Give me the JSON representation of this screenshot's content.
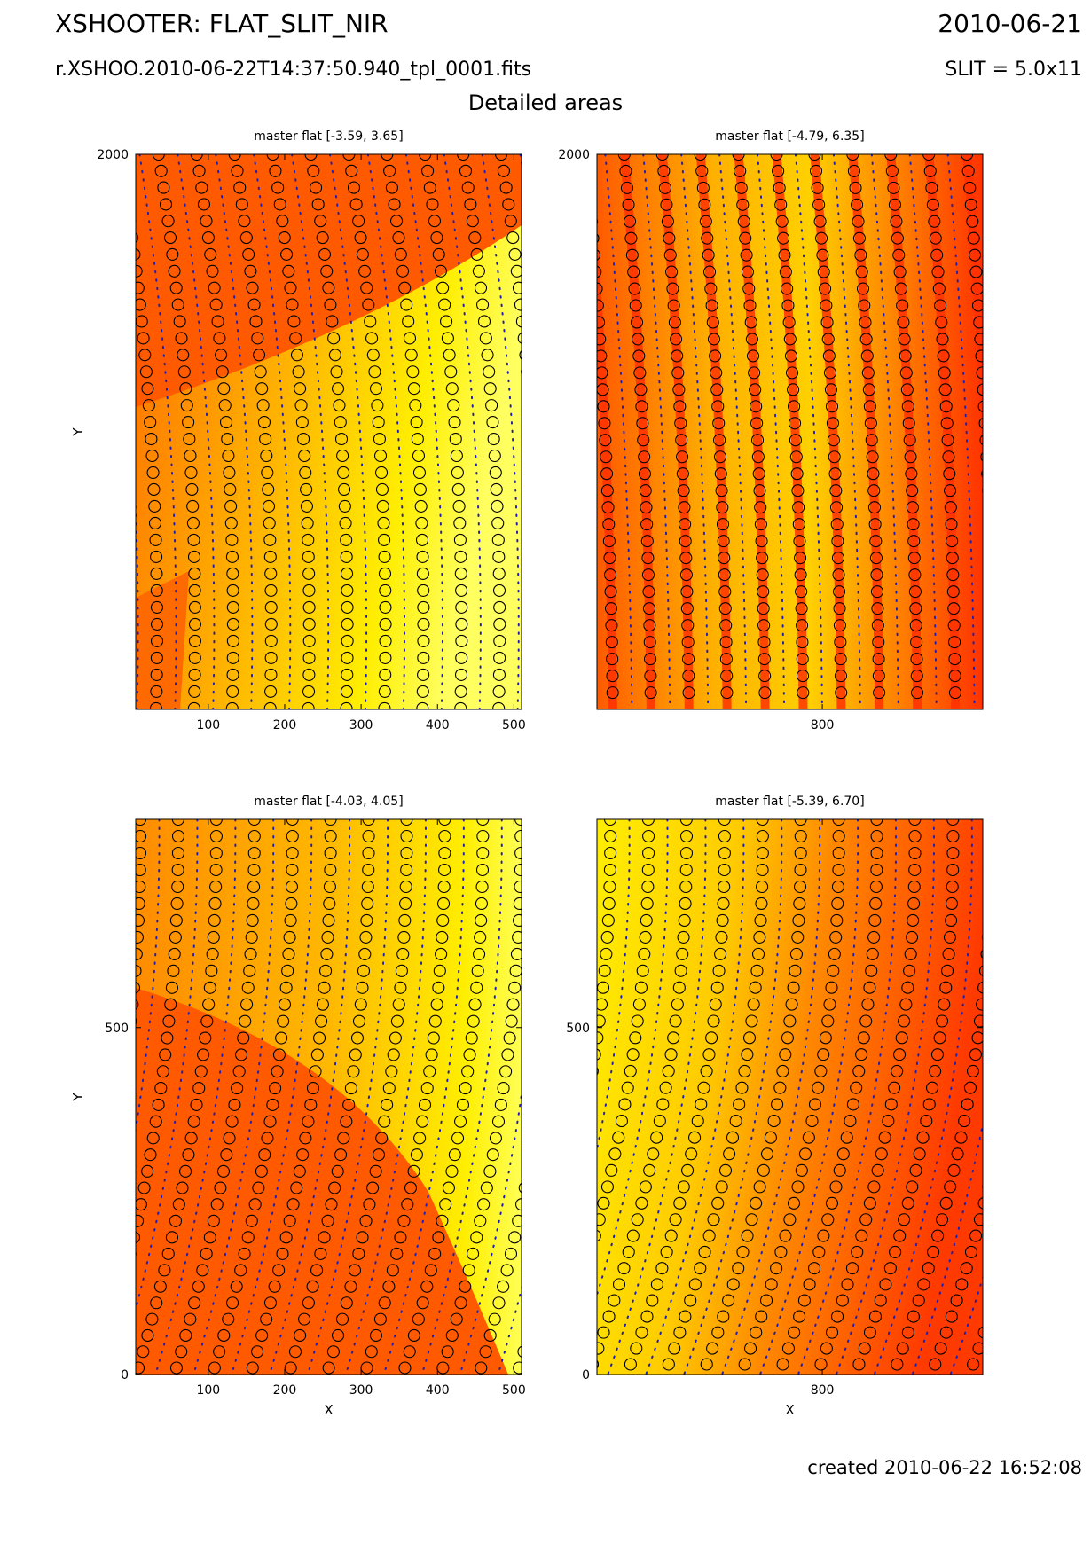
{
  "header": {
    "title": "XSHOOTER: FLAT_SLIT_NIR",
    "date": "2010-06-21",
    "filename": "r.XSHOO.2010-06-22T14:37:50.940_tpl_0001.fits",
    "slit": "SLIT = 5.0x11",
    "section_title": "Detailed areas"
  },
  "footer": {
    "created": "created 2010-06-22 16:52:08"
  },
  "colors": {
    "background_low": "#ff5500",
    "background_high": "#ffff40",
    "trace_center": "#2020b0",
    "trace_edge": "#000000"
  },
  "chart_data": [
    {
      "type": "heatmap",
      "title": "master flat [-3.59, 3.65]",
      "xlabel": "",
      "ylabel": "Y",
      "xlim": [
        5,
        510
      ],
      "ylim": [
        0,
        2000
      ],
      "xticks": [
        100,
        200,
        300,
        400,
        500
      ],
      "yticks": [
        2000
      ],
      "value_range": [
        -3.59,
        3.65
      ],
      "variant": "tl"
    },
    {
      "type": "heatmap",
      "title": "master flat [-4.79, 6.35]",
      "xlabel": "",
      "ylabel": "",
      "xlim": [
        505,
        1010
      ],
      "ylim": [
        0,
        2000
      ],
      "xticks": [
        800
      ],
      "yticks": [
        2000
      ],
      "value_range": [
        -4.79,
        6.35
      ],
      "variant": "tr"
    },
    {
      "type": "heatmap",
      "title": "master flat [-4.03, 4.05]",
      "xlabel": "X",
      "ylabel": "Y",
      "xlim": [
        5,
        510
      ],
      "ylim": [
        0,
        800
      ],
      "xticks": [
        100,
        200,
        300,
        400,
        500
      ],
      "yticks": [
        0,
        500
      ],
      "value_range": [
        -4.03,
        4.05
      ],
      "variant": "bl"
    },
    {
      "type": "heatmap",
      "title": "master flat [-5.39, 6.70]",
      "xlabel": "X",
      "ylabel": "",
      "xlim": [
        505,
        1010
      ],
      "ylim": [
        0,
        800
      ],
      "xticks": [
        800
      ],
      "yticks": [
        0,
        500
      ],
      "value_range": [
        -5.39,
        6.7
      ],
      "variant": "br"
    }
  ]
}
